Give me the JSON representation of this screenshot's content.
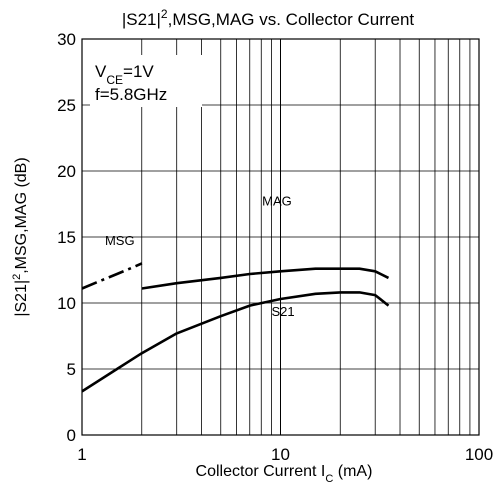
{
  "chart_data": {
    "type": "line",
    "title": "|S21|², MSG, MAG vs. Collector Current",
    "title_parts": {
      "pre": "|S21|",
      "sup": "2",
      "post": ",MSG,MAG vs. Collector Current"
    },
    "xlabel": "Collector Current",
    "xlabel_symbol": {
      "main": "I",
      "sub": "C",
      "unit": " (mA)"
    },
    "ylabel": "|S21|²,MSG,MAG (dB)",
    "ylabel_parts": {
      "pre": "|S21|",
      "sup": "2",
      "post": ",MSG,MAG (dB)"
    },
    "xscale": "log",
    "xlim": [
      1,
      100
    ],
    "ylim": [
      0,
      30
    ],
    "xticks": [
      1,
      10,
      100
    ],
    "xtick_labels": [
      "1",
      "10",
      "100"
    ],
    "yticks": [
      0,
      5,
      10,
      15,
      20,
      25,
      30
    ],
    "ytick_labels": [
      "0",
      "5",
      "10",
      "15",
      "20",
      "25",
      "30"
    ],
    "grid": true,
    "conditions": {
      "vce": {
        "main": "V",
        "sub": "CE",
        "rest": "=1V"
      },
      "freq": "f=5.8GHz"
    },
    "series": [
      {
        "name": "MSG",
        "style": "dash-dot",
        "x": [
          1.0,
          1.2,
          1.5,
          1.8,
          2.0
        ],
        "y": [
          11.1,
          11.6,
          12.2,
          12.7,
          13.0
        ]
      },
      {
        "name": "MAG",
        "style": "solid",
        "x": [
          2.0,
          3.0,
          5.0,
          7.0,
          10.0,
          15.0,
          20.0,
          25.0,
          30.0,
          35.0
        ],
        "y": [
          11.1,
          11.5,
          11.9,
          12.2,
          12.4,
          12.6,
          12.6,
          12.6,
          12.4,
          11.9
        ]
      },
      {
        "name": "S21",
        "style": "solid",
        "x": [
          1.0,
          1.5,
          2.0,
          3.0,
          5.0,
          7.0,
          10.0,
          15.0,
          20.0,
          25.0,
          30.0,
          35.0
        ],
        "y": [
          3.3,
          5.0,
          6.2,
          7.7,
          9.0,
          9.8,
          10.3,
          10.7,
          10.8,
          10.8,
          10.6,
          9.8
        ]
      }
    ],
    "annotations": [
      {
        "text": "MSG",
        "x": 1.55,
        "y": 14.4
      },
      {
        "text": "MAG",
        "x": 9.6,
        "y": 17.4
      },
      {
        "text": "S21",
        "x": 10.3,
        "y": 9.0
      }
    ]
  }
}
